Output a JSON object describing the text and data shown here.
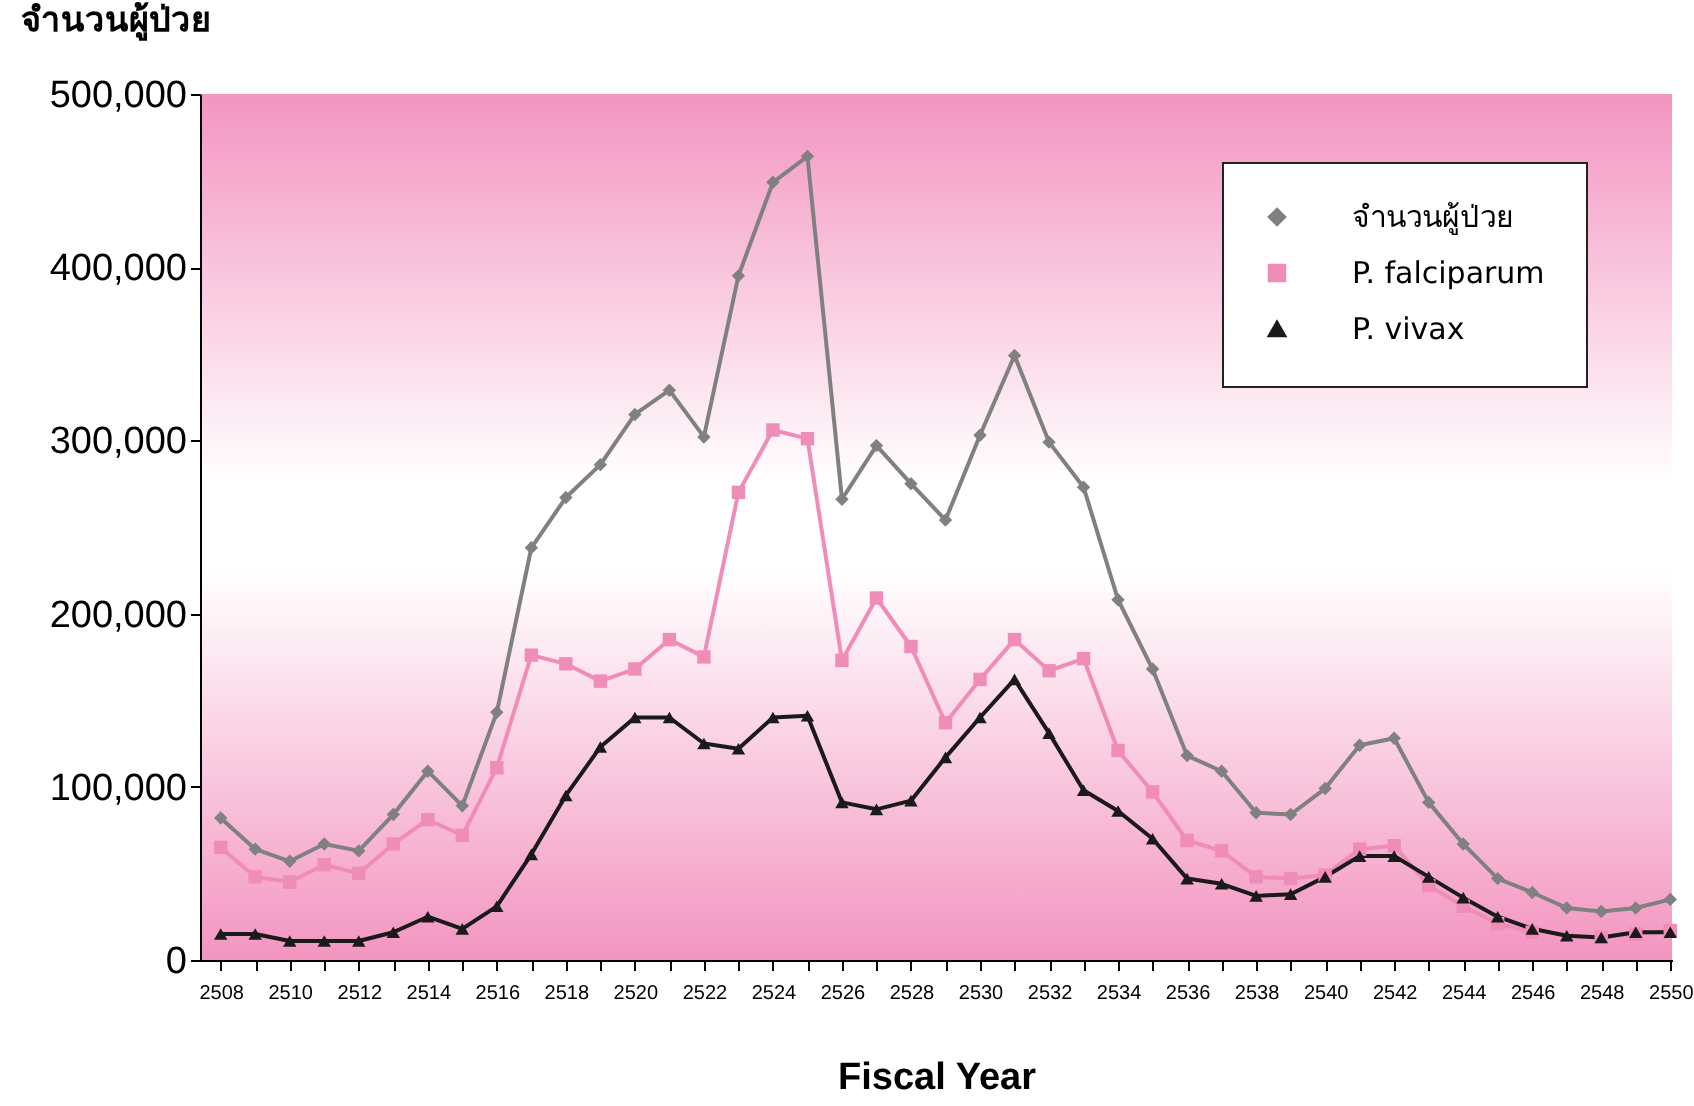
{
  "chart_data": {
    "type": "line",
    "xlabel": "Fiscal Year",
    "ylabel": "จำนวนผู้ป่วย",
    "x": [
      2508,
      2509,
      2510,
      2511,
      2512,
      2513,
      2514,
      2515,
      2516,
      2517,
      2518,
      2519,
      2520,
      2521,
      2522,
      2523,
      2524,
      2525,
      2526,
      2527,
      2528,
      2529,
      2530,
      2531,
      2532,
      2533,
      2534,
      2535,
      2536,
      2537,
      2538,
      2539,
      2540,
      2541,
      2542,
      2543,
      2544,
      2545,
      2546,
      2547,
      2548,
      2549,
      2550
    ],
    "series": [
      {
        "name": "จำนวนผู้ป่วย",
        "color": "#808080",
        "marker": "diamond",
        "values": [
          82000,
          64000,
          57000,
          67000,
          63000,
          84000,
          109000,
          89000,
          143000,
          238000,
          267000,
          286000,
          315000,
          329000,
          302000,
          395000,
          449000,
          464000,
          266000,
          297000,
          275000,
          254000,
          303000,
          349000,
          299000,
          273000,
          208000,
          168000,
          118000,
          109000,
          85000,
          84000,
          99000,
          124000,
          128000,
          91000,
          67000,
          47000,
          39000,
          30000,
          28000,
          30000,
          35000
        ]
      },
      {
        "name": "P. falciparum",
        "color": "#f08cb8",
        "marker": "square",
        "values": [
          65000,
          48000,
          45000,
          55000,
          50000,
          67000,
          81000,
          72000,
          111000,
          176000,
          171000,
          161000,
          168000,
          185000,
          175000,
          270000,
          306000,
          301000,
          173000,
          209000,
          181000,
          137000,
          162000,
          185000,
          167000,
          174000,
          121000,
          97000,
          69000,
          63000,
          48000,
          47000,
          49000,
          64000,
          66000,
          43000,
          31000,
          21000,
          16000,
          null,
          13000,
          15000,
          17000
        ]
      },
      {
        "name": "P. vivax",
        "color": "#1a1a1a",
        "marker": "triangle",
        "values": [
          15000,
          15000,
          11000,
          11000,
          11000,
          16000,
          25000,
          18000,
          31000,
          61000,
          95000,
          123000,
          140000,
          140000,
          125000,
          122000,
          140000,
          141000,
          91000,
          87000,
          92000,
          117000,
          140000,
          162000,
          131000,
          98000,
          86000,
          70000,
          47000,
          44000,
          37000,
          38000,
          48000,
          60000,
          60000,
          48000,
          36000,
          25000,
          18000,
          14000,
          13000,
          16000,
          16000
        ]
      }
    ],
    "xlim": [
      2507.4,
      2550.05
    ],
    "xticks": [
      2508,
      {
        "value": 2509,
        "label": null
      },
      2510,
      {
        "value": 2511,
        "label": null
      },
      2512,
      {
        "value": 2513,
        "label": null
      },
      2514,
      {
        "value": 2515,
        "label": null
      },
      2516,
      {
        "value": 2517,
        "label": null
      },
      2518,
      {
        "value": 2519,
        "label": null
      },
      2520,
      {
        "value": 2521,
        "label": null
      },
      2522,
      {
        "value": 2523,
        "label": null
      },
      2524,
      {
        "value": 2525,
        "label": null
      },
      2526,
      {
        "value": 2527,
        "label": null
      },
      2528,
      {
        "value": 2529,
        "label": null
      },
      2530,
      {
        "value": 2531,
        "label": null
      },
      2532,
      {
        "value": 2533,
        "label": null
      },
      2534,
      {
        "value": 2535,
        "label": null
      },
      2536,
      {
        "value": 2537,
        "label": null
      },
      2538,
      {
        "value": 2539,
        "label": null
      },
      2540,
      {
        "value": 2541,
        "label": null
      },
      2542,
      {
        "value": 2543,
        "label": null
      },
      2544,
      {
        "value": 2545,
        "label": null
      },
      2546,
      {
        "value": 2547,
        "label": null
      },
      2548,
      {
        "value": 2549,
        "label": null
      },
      2550
    ],
    "ylim": [
      0,
      500000
    ],
    "yticks": [
      0,
      {
        "value": 100000,
        "label": "100,000"
      },
      {
        "value": 200000,
        "label": "200,000"
      },
      {
        "value": 300000,
        "label": "300,000"
      },
      {
        "value": 400000,
        "label": "400,000"
      },
      {
        "value": 500000,
        "label": "500,000"
      }
    ],
    "grid": false,
    "legend": "top right",
    "line_style": "solid"
  }
}
